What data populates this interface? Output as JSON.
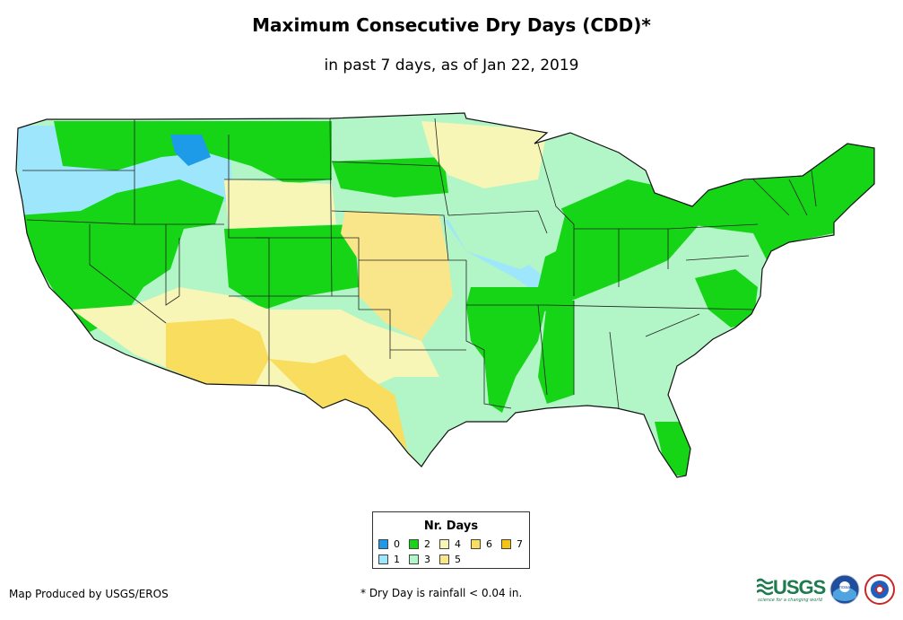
{
  "title": "Maximum Consecutive Dry Days (CDD)*",
  "subtitle": "in past 7 days, as of Jan 22, 2019",
  "legend": {
    "title": "Nr. Days",
    "items": [
      {
        "label": "0",
        "color": "#1e9be8"
      },
      {
        "label": "1",
        "color": "#9ee6fb"
      },
      {
        "label": "2",
        "color": "#16d416"
      },
      {
        "label": "3",
        "color": "#b2f5c6"
      },
      {
        "label": "4",
        "color": "#f7f6b7"
      },
      {
        "label": "5",
        "color": "#f9e68a"
      },
      {
        "label": "6",
        "color": "#f9dd5e"
      },
      {
        "label": "7",
        "color": "#f5c312"
      }
    ]
  },
  "credit": "Map Produced by USGS/EROS",
  "footnote": "* Dry Day is rainfall < 0.04 in.",
  "logos": {
    "usgs": "USGS",
    "usgs_tagline": "science for a changing world",
    "noaa": "noaa",
    "nws": "National Weather Service"
  }
}
